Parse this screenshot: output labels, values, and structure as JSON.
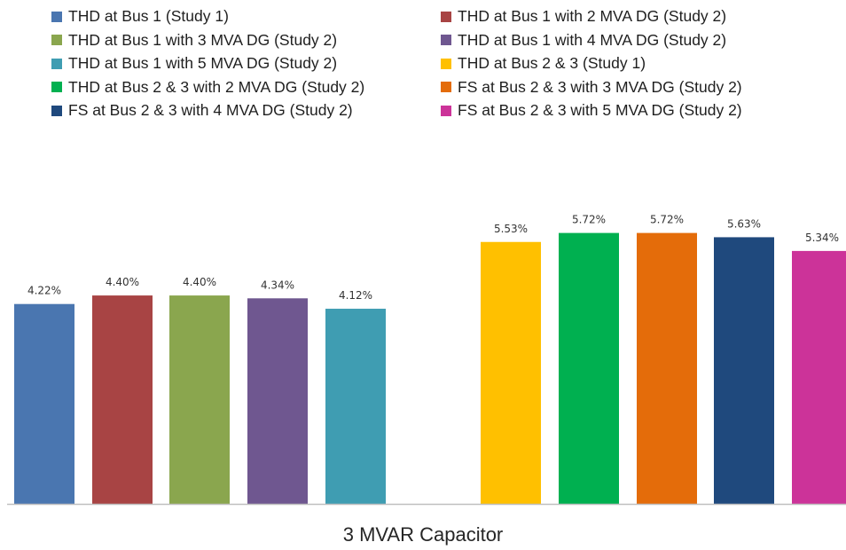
{
  "chart_data": {
    "type": "bar",
    "categories": [
      "3 MVAR Capacitor"
    ],
    "series": [
      {
        "name": "THD at Bus 1 (Study 1)",
        "value": 4.22,
        "label": "4.22%",
        "color": "#4a76b0"
      },
      {
        "name": "THD at Bus 1 with 2 MVA DG (Study 2)",
        "value": 4.4,
        "label": "4.40%",
        "color": "#a84444"
      },
      {
        "name": "THD at Bus 1 with 3 MVA DG (Study 2)",
        "value": 4.4,
        "label": "4.40%",
        "color": "#8aa64e"
      },
      {
        "name": "THD at Bus 1 with 4 MVA DG (Study 2)",
        "value": 4.34,
        "label": "4.34%",
        "color": "#6f5790"
      },
      {
        "name": "THD at Bus 1 with 5 MVA DG (Study 2)",
        "value": 4.12,
        "label": "4.12%",
        "color": "#3f9db2"
      },
      {
        "name": "THD at Bus 2 & 3 (Study 1)",
        "value": 5.53,
        "label": "5.53%",
        "color": "#ffc000"
      },
      {
        "name": "THD at Bus 2 & 3 with 2 MVA DG (Study 2)",
        "value": 5.72,
        "label": "5.72%",
        "color": "#00b050"
      },
      {
        "name": "FS at Bus 2 & 3 with 3 MVA DG (Study 2)",
        "value": 5.72,
        "label": "5.72%",
        "color": "#e46c0a"
      },
      {
        "name": "FS at Bus 2 & 3 with 4 MVA DG (Study 2)",
        "value": 5.63,
        "label": "5.63%",
        "color": "#1f497d"
      },
      {
        "name": "FS at Bus 2 & 3 with 5 MVA DG (Study 2)",
        "value": 5.34,
        "label": "5.34%",
        "color": "#cc3399"
      }
    ],
    "ylim": [
      0,
      5.9
    ],
    "grid": false,
    "legend_position": "top",
    "xlabel": "",
    "ylabel": ""
  }
}
